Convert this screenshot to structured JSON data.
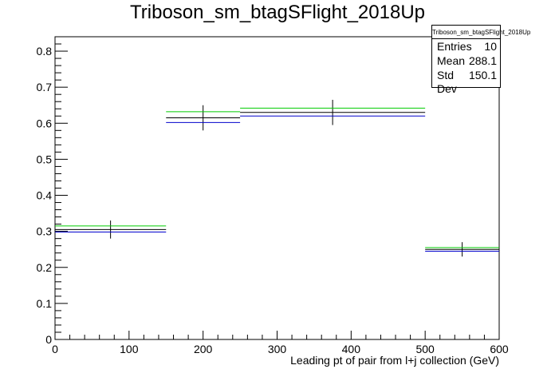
{
  "title": "Triboson_sm_btagSFlight_2018Up",
  "stats": {
    "name": "Triboson_sm_btagSFlight_2018Up",
    "rows": [
      {
        "label": "Entries",
        "value": "10"
      },
      {
        "label": "Mean",
        "value": "288.1"
      },
      {
        "label": "Std Dev",
        "value": "150.1"
      }
    ]
  },
  "chart_data": {
    "type": "histogram",
    "xlabel": "Leading pt of pair from l+j collection (GeV)",
    "ylabel": "",
    "xlim": [
      0,
      600
    ],
    "ylim": [
      0,
      0.84
    ],
    "x_ticks": [
      0,
      100,
      200,
      300,
      400,
      500,
      600
    ],
    "y_ticks": [
      0,
      0.1,
      0.2,
      0.3,
      0.4,
      0.5,
      0.6,
      0.7,
      0.8
    ],
    "bins": [
      [
        0,
        150
      ],
      [
        150,
        250
      ],
      [
        250,
        500
      ],
      [
        500,
        600
      ]
    ],
    "series": [
      {
        "color": "#000000",
        "values": [
          0.305,
          0.615,
          0.63,
          0.25
        ],
        "errors": [
          0.025,
          0.035,
          0.035,
          0.02
        ]
      },
      {
        "color": "#00cc00",
        "values": [
          0.315,
          0.632,
          0.642,
          0.255
        ]
      },
      {
        "color": "#0000cc",
        "values": [
          0.298,
          0.602,
          0.62,
          0.245
        ]
      }
    ],
    "grid": false,
    "legend": "top-right"
  }
}
